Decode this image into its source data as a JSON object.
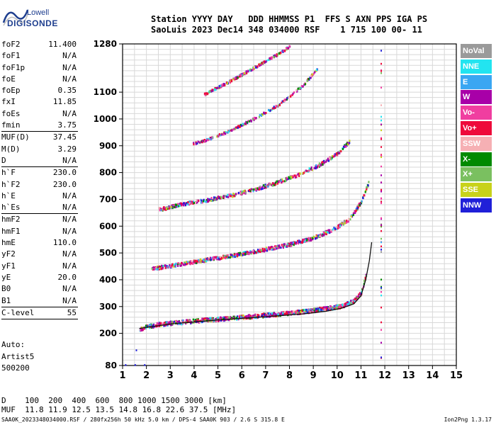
{
  "logo": {
    "brand": "Lowell",
    "product": "DIGISONDE"
  },
  "header": {
    "line1": "Station YYYY DAY   DDD HHMMSS P1  FFS S AXN PPS IGA PS",
    "line2": "SaoLuis 2023 Dec14 348 034000 RSF    1 715 100 00- 11"
  },
  "params": {
    "group1": [
      {
        "label": "foF2",
        "value": "11.400"
      },
      {
        "label": "foF1",
        "value": "N/A"
      },
      {
        "label": "foF1p",
        "value": "N/A"
      },
      {
        "label": "foE",
        "value": "N/A"
      },
      {
        "label": "foEp",
        "value": "0.35"
      },
      {
        "label": "fxI",
        "value": "11.85"
      },
      {
        "label": "foEs",
        "value": "N/A"
      },
      {
        "label": "fmin",
        "value": "3.75"
      }
    ],
    "group2": [
      {
        "label": "MUF(D)",
        "value": "37.45"
      },
      {
        "label": "M(D)",
        "value": "3.29"
      },
      {
        "label": "D",
        "value": "N/A"
      }
    ],
    "group3": [
      {
        "label": "h`F",
        "value": "230.0"
      },
      {
        "label": "h`F2",
        "value": "230.0"
      },
      {
        "label": "h`E",
        "value": "N/A"
      },
      {
        "label": "h`Es",
        "value": "N/A"
      }
    ],
    "group4": [
      {
        "label": "hmF2",
        "value": "N/A"
      },
      {
        "label": "hmF1",
        "value": "N/A"
      },
      {
        "label": "hmE",
        "value": "110.0"
      },
      {
        "label": "yF2",
        "value": "N/A"
      },
      {
        "label": "yF1",
        "value": "N/A"
      },
      {
        "label": "yE",
        "value": "20.0"
      },
      {
        "label": "B0",
        "value": "N/A"
      },
      {
        "label": "B1",
        "value": "N/A"
      }
    ],
    "group5": [
      {
        "label": "C-level",
        "value": "55"
      }
    ]
  },
  "auto": {
    "line1": "Auto:",
    "line2": "Artist5",
    "line3": "500200"
  },
  "legend": [
    {
      "label": "NoVal",
      "color": "#9a9a9a"
    },
    {
      "label": "NNE",
      "color": "#22e4f0"
    },
    {
      "label": "E",
      "color": "#3aa6f2"
    },
    {
      "label": "W",
      "color": "#a800a8"
    },
    {
      "label": "Vo-",
      "color": "#f03ea0"
    },
    {
      "label": "Vo+",
      "color": "#ee0a3a"
    },
    {
      "label": "SSW",
      "color": "#f6b0b4"
    },
    {
      "label": "X-",
      "color": "#008a00"
    },
    {
      "label": "X+",
      "color": "#7ac060"
    },
    {
      "label": "SSE",
      "color": "#c8d21a"
    },
    {
      "label": "NNW",
      "color": "#2020d8"
    }
  ],
  "chart_data": {
    "type": "scatter",
    "xlabel": "",
    "ylabel": "",
    "xlim": [
      1,
      15
    ],
    "ylim": [
      80,
      1280
    ],
    "x_ticks": [
      1,
      2,
      3,
      4,
      5,
      6,
      7,
      8,
      9,
      10,
      11,
      12,
      13,
      14,
      15
    ],
    "y_ticks": [
      80,
      200,
      300,
      400,
      500,
      600,
      700,
      800,
      900,
      1000,
      1100,
      1280
    ],
    "grid": true,
    "traces": [
      {
        "name": "hop1",
        "x": [
          1.7,
          2.5,
          3.5,
          4.5,
          5.5,
          6.5,
          7.5,
          8.5,
          9.5,
          10.2,
          10.7,
          11.0,
          11.2
        ],
        "y": [
          215,
          232,
          240,
          248,
          254,
          262,
          270,
          278,
          290,
          300,
          320,
          350,
          420
        ]
      },
      {
        "name": "hop2",
        "x": [
          2.2,
          3.0,
          4.0,
          5.0,
          6.0,
          7.0,
          8.0,
          9.0,
          9.8,
          10.5,
          11.0,
          11.3
        ],
        "y": [
          440,
          450,
          465,
          480,
          495,
          512,
          530,
          555,
          585,
          625,
          690,
          760
        ]
      },
      {
        "name": "hop3",
        "x": [
          2.5,
          3.5,
          4.5,
          5.5,
          6.5,
          7.5,
          8.5,
          9.3,
          10.0,
          10.5
        ],
        "y": [
          660,
          680,
          695,
          712,
          735,
          762,
          795,
          830,
          870,
          915
        ]
      },
      {
        "name": "hop4",
        "x": [
          3.9,
          4.5,
          5.5,
          6.5,
          7.5,
          8.5,
          9.2
        ],
        "y": [
          905,
          920,
          955,
          1000,
          1050,
          1120,
          1190
        ]
      },
      {
        "name": "hop5",
        "x": [
          4.4,
          5.5,
          6.5,
          7.5,
          8.0
        ],
        "y": [
          1090,
          1140,
          1190,
          1240,
          1270
        ]
      }
    ],
    "fit_line": {
      "x": [
        1.7,
        3.0,
        5.0,
        7.0,
        8.5,
        9.5,
        10.2,
        10.7,
        11.0,
        11.2,
        11.35,
        11.45
      ],
      "y": [
        218,
        235,
        250,
        262,
        272,
        282,
        294,
        310,
        340,
        400,
        470,
        540
      ]
    },
    "trace_x": 11.85
  },
  "bottom": {
    "line1": "D    100  200  400  600  800 1000 1500 3000 [km]",
    "line2": "MUF  11.8 11.9 12.5 13.5 14.8 16.8 22.6 37.5 [MHz]"
  },
  "footer": {
    "left": "SAA0K_2023348034000.RSF / 280fx256h 50 kHz 5.0 km / DPS-4 SAA0K 903 / 2.6 S 315.8 E",
    "right": "Ion2Png 1.3.17"
  }
}
